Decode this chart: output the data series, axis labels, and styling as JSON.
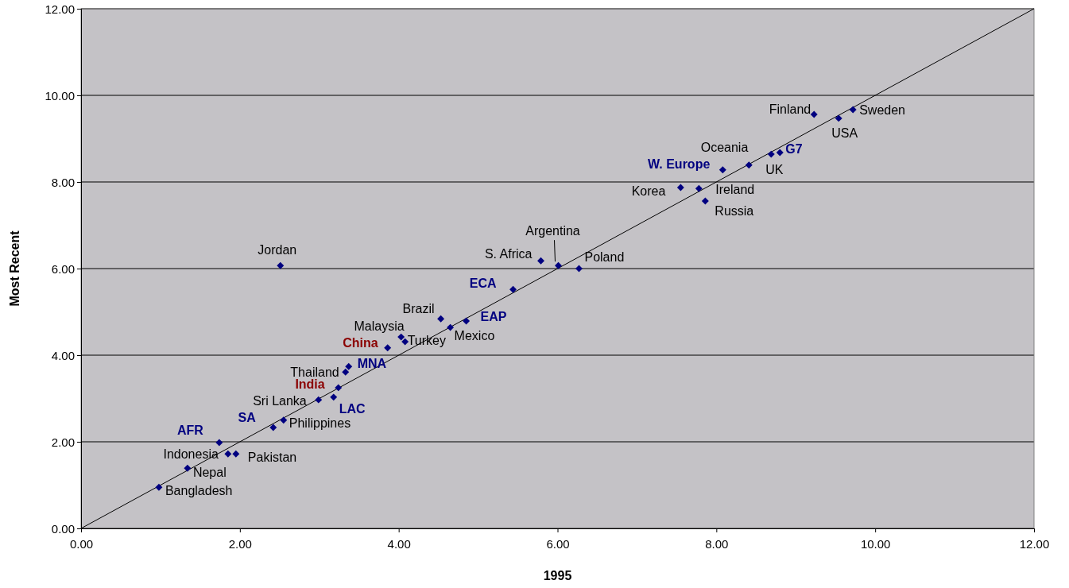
{
  "chart_data": {
    "type": "scatter",
    "xlabel": "1995",
    "ylabel": "Most Recent",
    "xlim": [
      0,
      12
    ],
    "ylim": [
      0,
      12
    ],
    "xticks": [
      {
        "value": 0,
        "label": "0.00"
      },
      {
        "value": 2,
        "label": "2.00"
      },
      {
        "value": 4,
        "label": "4.00"
      },
      {
        "value": 6,
        "label": "6.00"
      },
      {
        "value": 8,
        "label": "8.00"
      },
      {
        "value": 10,
        "label": "10.00"
      },
      {
        "value": 12,
        "label": "12.00"
      }
    ],
    "yticks": [
      {
        "value": 0,
        "label": "0.00"
      },
      {
        "value": 2,
        "label": "2.00"
      },
      {
        "value": 4,
        "label": "4.00"
      },
      {
        "value": 6,
        "label": "6.00"
      },
      {
        "value": 8,
        "label": "8.00"
      },
      {
        "value": 10,
        "label": "10.00"
      },
      {
        "value": 12,
        "label": "12.00"
      }
    ],
    "grid": "y",
    "series": [
      {
        "marker": "diamond",
        "color": "#000080",
        "x": [
          0.98,
          1.34,
          1.85,
          1.95,
          1.74,
          2.42,
          2.55,
          2.99,
          3.18,
          3.24,
          3.33,
          3.37,
          3.86,
          4.03,
          4.08,
          4.53,
          4.65,
          4.85,
          5.44,
          5.79,
          6.01,
          6.27,
          2.51,
          7.55,
          7.78,
          7.86,
          8.08,
          8.41,
          8.69,
          8.8,
          9.23,
          9.54,
          9.72
        ],
        "values": [
          0.95,
          1.39,
          1.72,
          1.72,
          1.98,
          2.33,
          2.5,
          2.97,
          3.03,
          3.25,
          3.61,
          3.74,
          4.17,
          4.42,
          4.31,
          4.84,
          4.64,
          4.79,
          5.52,
          6.18,
          6.07,
          6,
          6.07,
          7.87,
          7.85,
          7.56,
          8.28,
          8.39,
          8.64,
          8.68,
          9.56,
          9.47,
          9.67
        ]
      },
      {
        "type": "line",
        "color": "#000000",
        "x": [
          0,
          12
        ],
        "values": [
          0,
          12
        ]
      }
    ],
    "annotations": [
      {
        "text": "Bangladesh",
        "x": 0.98,
        "y": 0.95
      },
      {
        "text": "Nepal",
        "x": 1.34,
        "y": 1.39
      },
      {
        "text": "Indonesia",
        "x": 1.85,
        "y": 1.72
      },
      {
        "text": "Pakistan",
        "x": 1.95,
        "y": 1.72
      },
      {
        "text": "AFR",
        "x": 1.74,
        "y": 1.98
      },
      {
        "text": "SA",
        "x": 2.42,
        "y": 2.33
      },
      {
        "text": "Philippines",
        "x": 2.55,
        "y": 2.5
      },
      {
        "text": "Sri Lanka",
        "x": 2.99,
        "y": 2.97
      },
      {
        "text": "LAC",
        "x": 3.18,
        "y": 3.03
      },
      {
        "text": "India",
        "x": 3.24,
        "y": 3.25
      },
      {
        "text": "Thailand",
        "x": 3.33,
        "y": 3.61
      },
      {
        "text": "MNA",
        "x": 3.37,
        "y": 3.74
      },
      {
        "text": "China",
        "x": 3.86,
        "y": 4.17
      },
      {
        "text": "Malaysia",
        "x": 4.03,
        "y": 4.42
      },
      {
        "text": "Turkey",
        "x": 4.08,
        "y": 4.31
      },
      {
        "text": "Brazil",
        "x": 4.53,
        "y": 4.84
      },
      {
        "text": "Mexico",
        "x": 4.65,
        "y": 4.64
      },
      {
        "text": "EAP",
        "x": 4.85,
        "y": 4.79
      },
      {
        "text": "ECA",
        "x": 5.44,
        "y": 5.52
      },
      {
        "text": "S. Africa",
        "x": 5.79,
        "y": 6.18
      },
      {
        "text": "Argentina",
        "x": 6.01,
        "y": 6.07
      },
      {
        "text": "Poland",
        "x": 6.27,
        "y": 6
      },
      {
        "text": "Jordan",
        "x": 2.51,
        "y": 6.07
      },
      {
        "text": "Korea",
        "x": 7.55,
        "y": 7.87
      },
      {
        "text": "Ireland",
        "x": 7.78,
        "y": 7.85
      },
      {
        "text": "Russia",
        "x": 7.86,
        "y": 7.56
      },
      {
        "text": "W. Europe",
        "x": 8.08,
        "y": 8.28
      },
      {
        "text": "Oceania",
        "x": 8.41,
        "y": 8.39
      },
      {
        "text": "UK",
        "x": 8.69,
        "y": 8.64
      },
      {
        "text": "G7",
        "x": 8.8,
        "y": 8.68
      },
      {
        "text": "Finland",
        "x": 9.23,
        "y": 9.56
      },
      {
        "text": "USA",
        "x": 9.54,
        "y": 9.47
      },
      {
        "text": "Sweden",
        "x": 9.72,
        "y": 9.67
      }
    ]
  }
}
